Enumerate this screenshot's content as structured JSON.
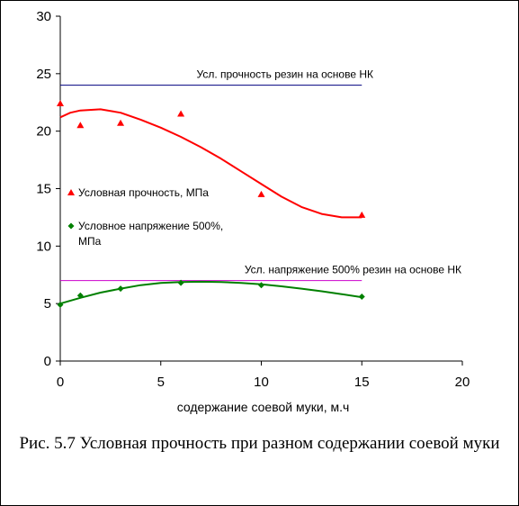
{
  "chart_data": {
    "type": "scatter",
    "xlabel": "содержание соевой муки, м.ч",
    "ylabel": "",
    "xlim": [
      0,
      20
    ],
    "ylim": [
      0,
      30
    ],
    "xticks": [
      0,
      5,
      10,
      15,
      20
    ],
    "yticks": [
      0,
      5,
      10,
      15,
      20,
      25,
      30
    ],
    "grid": false,
    "legend_position": "left-middle",
    "series": [
      {
        "name": "Условная прочность, МПа",
        "color": "#ff0000",
        "marker": "triangle",
        "x": [
          0,
          1,
          3,
          6,
          10,
          15
        ],
        "y": [
          22.4,
          20.5,
          20.7,
          21.5,
          14.5,
          12.7
        ],
        "trend": [
          [
            0,
            21.2
          ],
          [
            0.5,
            21.6
          ],
          [
            1,
            21.8
          ],
          [
            2,
            21.9
          ],
          [
            3,
            21.6
          ],
          [
            4,
            21.0
          ],
          [
            5,
            20.3
          ],
          [
            6,
            19.5
          ],
          [
            7,
            18.6
          ],
          [
            8,
            17.6
          ],
          [
            9,
            16.5
          ],
          [
            10,
            15.4
          ],
          [
            11,
            14.3
          ],
          [
            12,
            13.4
          ],
          [
            13,
            12.8
          ],
          [
            14,
            12.5
          ],
          [
            15,
            12.5
          ]
        ]
      },
      {
        "name": "Условное напряжение 500%, МПа",
        "color": "#008000",
        "marker": "diamond",
        "x": [
          0,
          1,
          3,
          6,
          10,
          15
        ],
        "y": [
          4.9,
          5.7,
          6.3,
          6.8,
          6.6,
          5.6
        ],
        "trend": [
          [
            0,
            5.0
          ],
          [
            1,
            5.5
          ],
          [
            2,
            5.95
          ],
          [
            3,
            6.3
          ],
          [
            4,
            6.6
          ],
          [
            5,
            6.8
          ],
          [
            6,
            6.88
          ],
          [
            7,
            6.9
          ],
          [
            8,
            6.88
          ],
          [
            9,
            6.8
          ],
          [
            10,
            6.68
          ],
          [
            11,
            6.5
          ],
          [
            12,
            6.3
          ],
          [
            13,
            6.07
          ],
          [
            14,
            5.82
          ],
          [
            15,
            5.55
          ]
        ]
      }
    ],
    "reference_lines": [
      {
        "label": "Усл. прочность резин на основе НК",
        "y": 24,
        "x0": 0,
        "x1": 15,
        "color": "#000080"
      },
      {
        "label": "Усл. напряжение 500% резин на основе НК",
        "y": 7,
        "x0": 0,
        "x1": 15,
        "color": "#cc00cc"
      }
    ]
  },
  "caption": "Рис. 5.7 Условная прочность при разном содержании соевой муки"
}
